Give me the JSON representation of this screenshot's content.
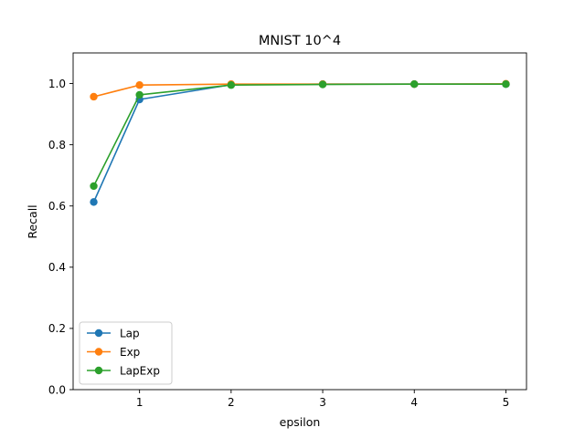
{
  "chart_data": {
    "type": "line",
    "title": "MNIST 10^4",
    "xlabel": "epsilon",
    "ylabel": "Recall",
    "x": [
      0.5,
      1,
      2,
      3,
      4,
      5
    ],
    "xlim": [
      0.275,
      5.225
    ],
    "ylim": [
      0.0,
      1.1
    ],
    "xticks": [
      1,
      2,
      3,
      4,
      5
    ],
    "yticks": [
      0.0,
      0.2,
      0.4,
      0.6,
      0.8,
      1.0
    ],
    "xtick_labels": [
      "1",
      "2",
      "3",
      "4",
      "5"
    ],
    "ytick_labels": [
      "0.0",
      "0.2",
      "0.4",
      "0.6",
      "0.8",
      "1.0"
    ],
    "grid": false,
    "legend_position": "lower-left",
    "series": [
      {
        "name": "Lap",
        "color": "#1f77b4",
        "values": [
          0.613,
          0.948,
          0.996,
          0.998,
          0.998,
          0.998
        ]
      },
      {
        "name": "Exp",
        "color": "#ff7f0e",
        "values": [
          0.957,
          0.995,
          0.998,
          0.998,
          0.998,
          0.999
        ]
      },
      {
        "name": "LapExp",
        "color": "#2ca02c",
        "values": [
          0.665,
          0.963,
          0.995,
          0.997,
          0.998,
          0.998
        ]
      }
    ]
  }
}
